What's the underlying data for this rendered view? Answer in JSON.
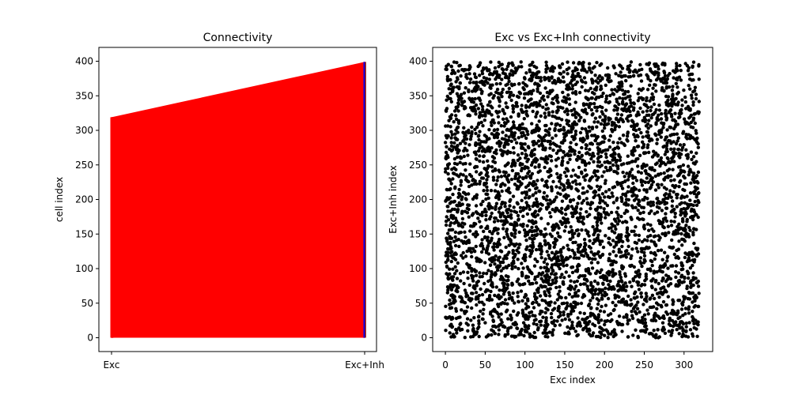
{
  "chart_data": [
    {
      "type": "line",
      "title": "Connectivity",
      "xlabel": "",
      "ylabel": "cell index",
      "categories": [
        "Exc",
        "Exc+Inh"
      ],
      "ylim": [
        -20,
        420
      ],
      "yticks": [
        0,
        50,
        100,
        150,
        200,
        250,
        300,
        350,
        400
      ],
      "grid": false,
      "legend": "none",
      "line_color": "#ff0000",
      "endpoint_color": "#0000ff",
      "connections_summary": {
        "exc_index_range": [
          0,
          319
        ],
        "exc_inh_index_range": [
          0,
          399
        ],
        "note": "many red lines connect each Exc index (left) to an Exc+Inh index (right), densely filling the region"
      },
      "series": [
        {
          "name": "",
          "x": [
            "Exc",
            "Exc+Inh"
          ],
          "values": [
            0,
            0
          ]
        },
        {
          "name": "",
          "x": [
            "Exc",
            "Exc+Inh"
          ],
          "values": [
            319,
            399
          ]
        }
      ]
    },
    {
      "type": "scatter",
      "title": "Exc vs Exc+Inh connectivity",
      "xlabel": "Exc index",
      "ylabel": "Exc+Inh index",
      "xlim": [
        -16,
        336
      ],
      "ylim": [
        -20,
        420
      ],
      "xticks": [
        0,
        50,
        100,
        150,
        200,
        250,
        300
      ],
      "yticks": [
        0,
        50,
        100,
        150,
        200,
        250,
        300,
        350,
        400
      ],
      "grid": false,
      "legend": "none",
      "marker_color": "#000000",
      "points_summary": {
        "x_range": [
          0,
          319
        ],
        "y_range": [
          0,
          399
        ],
        "distribution": "approximately uniform random, dense"
      }
    }
  ]
}
